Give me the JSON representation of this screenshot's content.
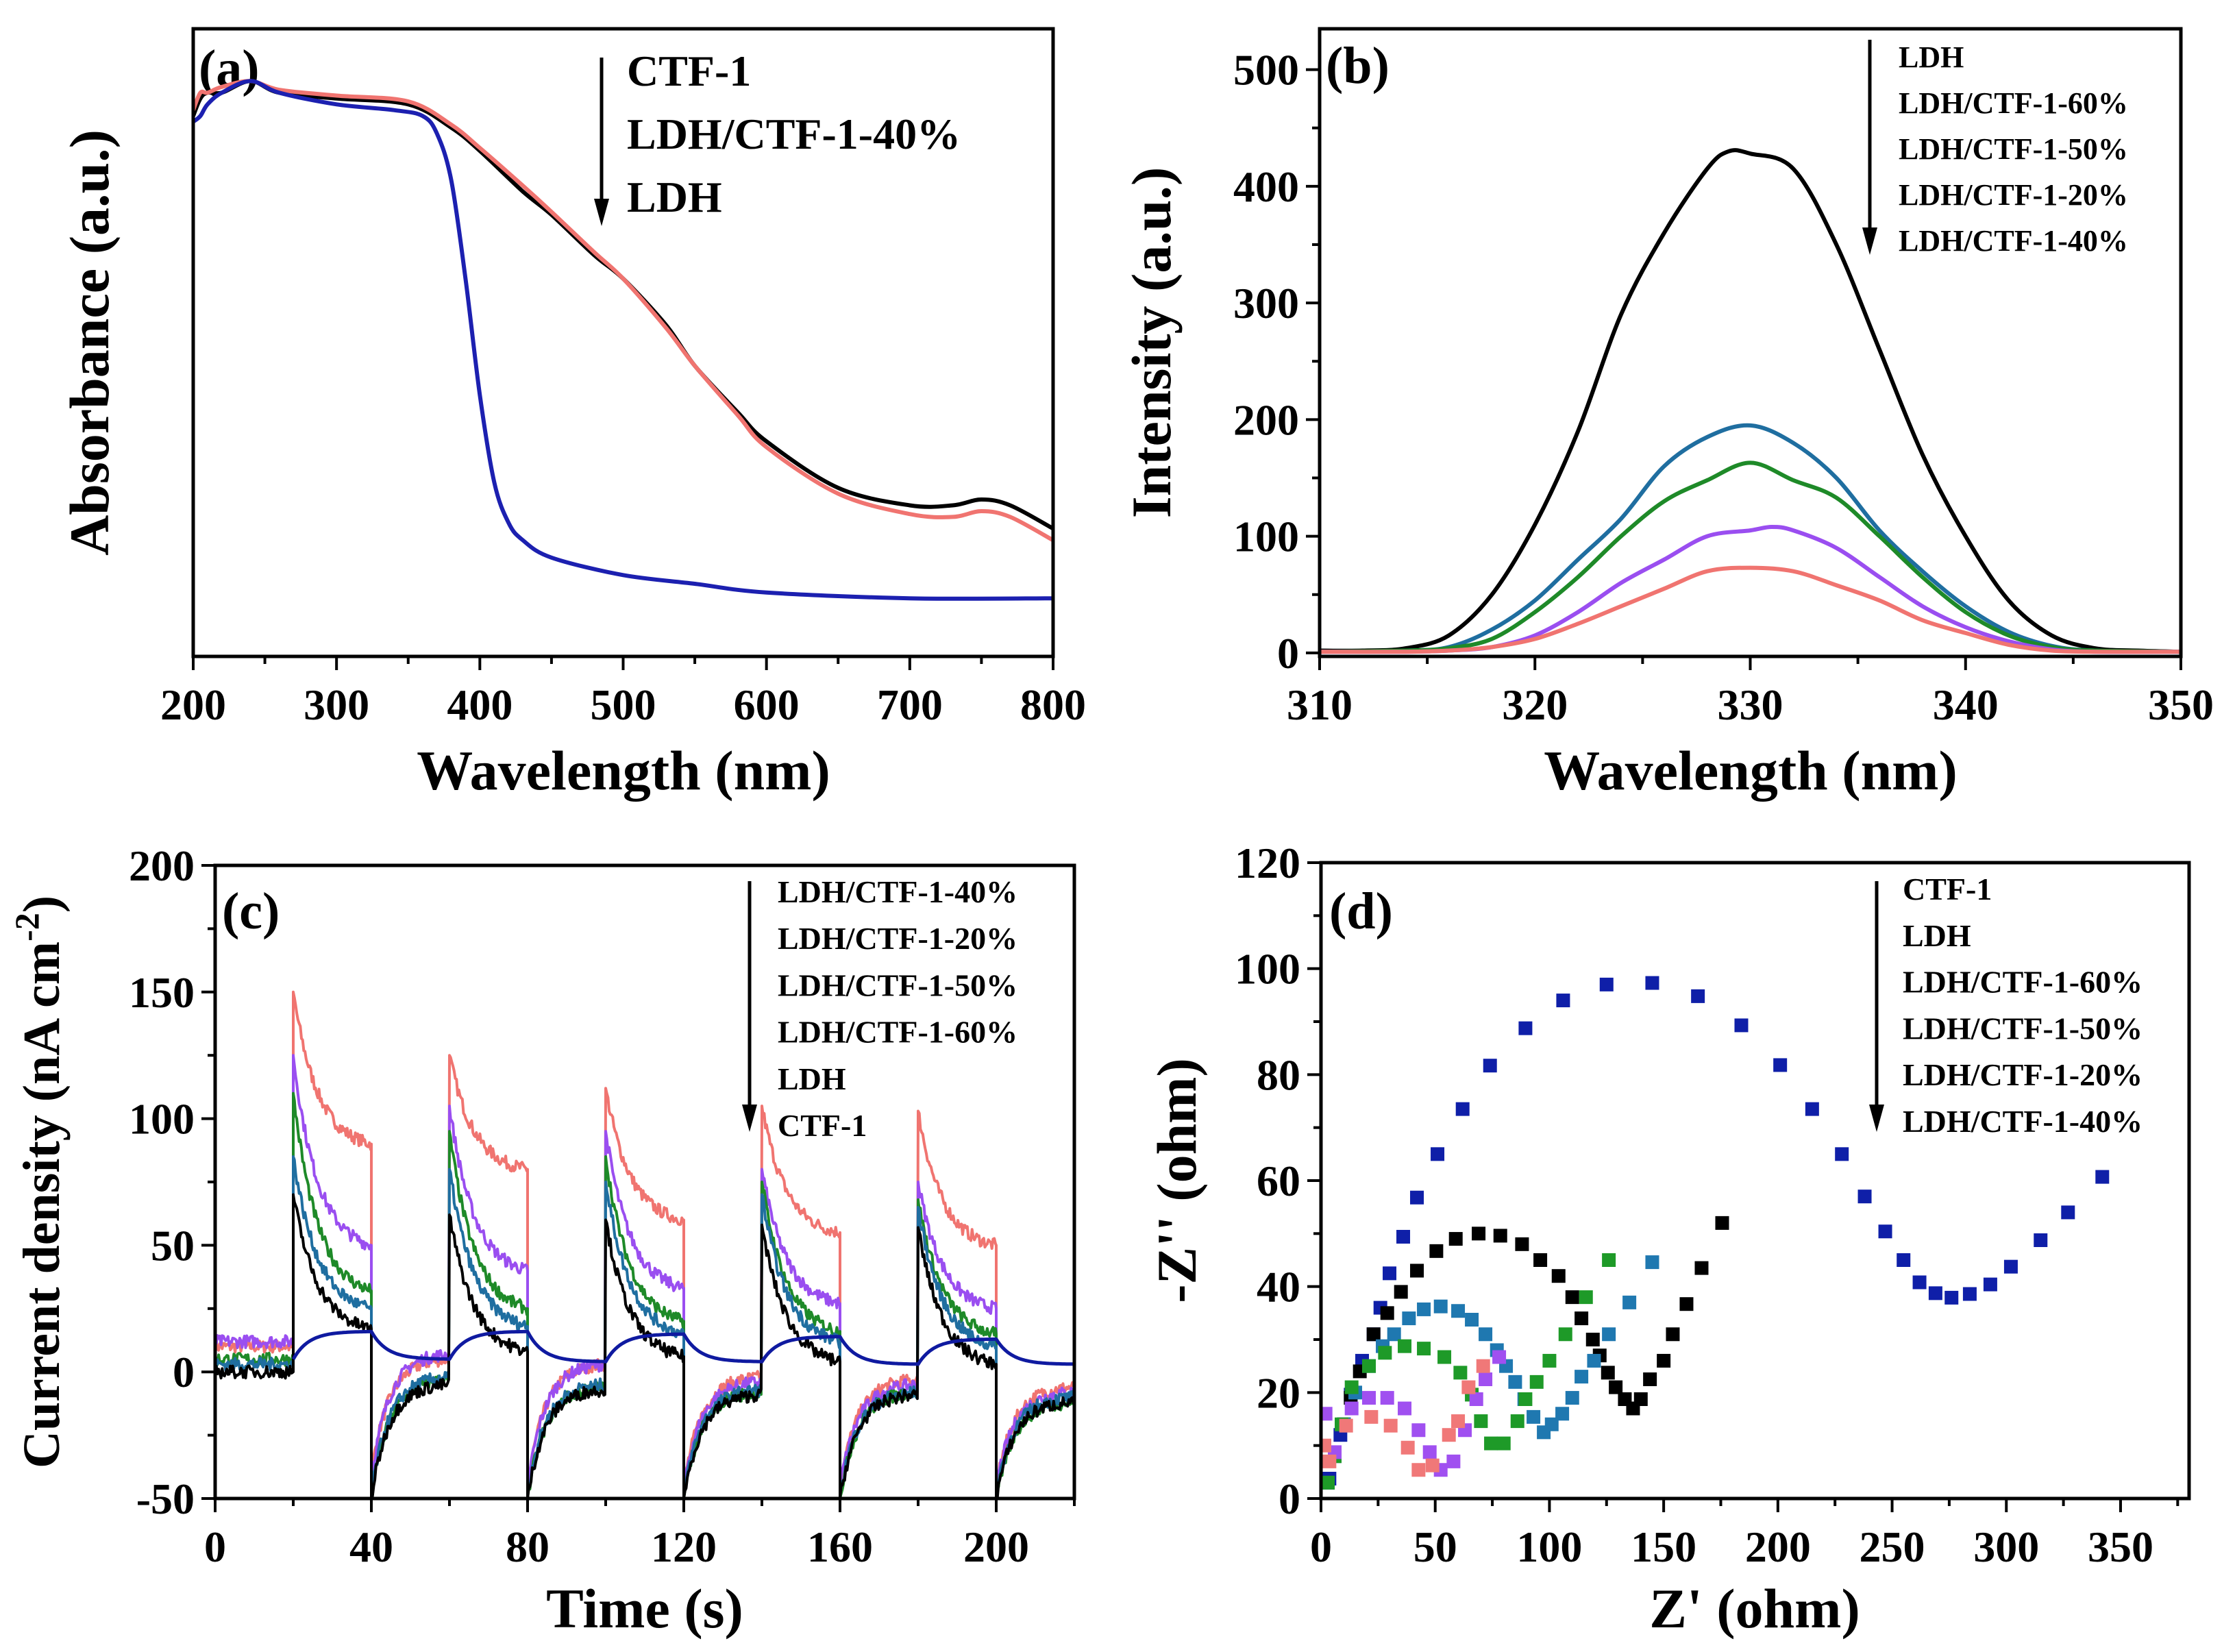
{
  "chart_data": [
    {
      "id": "a",
      "panel_label": "(a)",
      "type": "line",
      "xlabel": "Wavelength (nm)",
      "ylabel": "Absorbance (a.u.)",
      "xlim": [
        200,
        800
      ],
      "ylim": [
        0,
        1.08
      ],
      "xticks": [
        200,
        300,
        400,
        500,
        600,
        700,
        800
      ],
      "xminor": 50,
      "yticks": [],
      "yminor": null,
      "grid": false,
      "legend": {
        "placement": "top-center",
        "arrow": true,
        "items": [
          "CTF-1",
          "LDH/CTF-1-40%",
          "LDH"
        ]
      },
      "series": [
        {
          "name": "CTF-1",
          "color": "#000000",
          "x": [
            200,
            205,
            210,
            220,
            240,
            260,
            300,
            350,
            380,
            400,
            430,
            450,
            480,
            500,
            530,
            550,
            580,
            600,
            650,
            700,
            730,
            750,
            770,
            800
          ],
          "y": [
            0.93,
            0.96,
            0.97,
            0.97,
            0.99,
            0.97,
            0.96,
            0.95,
            0.91,
            0.87,
            0.8,
            0.76,
            0.69,
            0.65,
            0.57,
            0.5,
            0.42,
            0.37,
            0.29,
            0.26,
            0.26,
            0.27,
            0.26,
            0.22
          ]
        },
        {
          "name": "LDH/CTF-1-40%",
          "color": "#f07470",
          "x": [
            200,
            205,
            210,
            220,
            240,
            260,
            300,
            350,
            380,
            400,
            430,
            450,
            480,
            500,
            530,
            550,
            580,
            600,
            650,
            700,
            730,
            750,
            770,
            800
          ],
          "y": [
            0.94,
            0.97,
            0.97,
            0.98,
            0.99,
            0.975,
            0.965,
            0.955,
            0.915,
            0.875,
            0.81,
            0.765,
            0.695,
            0.65,
            0.565,
            0.5,
            0.415,
            0.36,
            0.28,
            0.245,
            0.24,
            0.25,
            0.24,
            0.2
          ]
        },
        {
          "name": "LDH",
          "color": "#1c20b0",
          "x": [
            200,
            205,
            210,
            220,
            240,
            260,
            300,
            340,
            360,
            370,
            380,
            390,
            400,
            410,
            420,
            430,
            450,
            500,
            550,
            600,
            700,
            800
          ],
          "y": [
            0.92,
            0.93,
            0.95,
            0.97,
            0.99,
            0.97,
            0.95,
            0.94,
            0.93,
            0.9,
            0.82,
            0.65,
            0.45,
            0.3,
            0.23,
            0.2,
            0.17,
            0.14,
            0.125,
            0.11,
            0.1,
            0.1
          ]
        }
      ]
    },
    {
      "id": "b",
      "panel_label": "(b)",
      "type": "line",
      "xlabel": "Wavelength (nm)",
      "ylabel": "Intensity (a.u.)",
      "xlim": [
        310,
        350
      ],
      "ylim": [
        -3,
        535
      ],
      "xticks": [
        310,
        320,
        330,
        340,
        350
      ],
      "xminor": 5,
      "yticks": [
        0,
        100,
        200,
        300,
        400,
        500
      ],
      "yminor": 50,
      "grid": false,
      "legend": {
        "placement": "top-right",
        "arrow": true,
        "items": [
          "LDH",
          "LDH/CTF-1-60%",
          "LDH/CTF-1-50%",
          "LDH/CTF-1-20%",
          "LDH/CTF-1-40%"
        ]
      },
      "series": [
        {
          "name": "LDH",
          "color": "#000000",
          "x": [
            310,
            312,
            314,
            316,
            318,
            320,
            322,
            324,
            326,
            328,
            329,
            330,
            332,
            334,
            336,
            338,
            340,
            342,
            344,
            346,
            348,
            350
          ],
          "y": [
            2,
            2,
            4,
            15,
            50,
            110,
            190,
            290,
            360,
            415,
            430,
            428,
            415,
            350,
            260,
            170,
            100,
            45,
            15,
            4,
            2,
            1
          ]
        },
        {
          "name": "LDH/CTF-1-60%",
          "color": "#1f6ea0",
          "x": [
            310,
            314,
            316,
            318,
            320,
            322,
            324,
            326,
            328,
            330,
            332,
            334,
            336,
            338,
            340,
            342,
            344,
            346,
            350
          ],
          "y": [
            1,
            2,
            5,
            20,
            45,
            80,
            115,
            160,
            185,
            195,
            180,
            150,
            105,
            70,
            40,
            18,
            6,
            2,
            1
          ]
        },
        {
          "name": "LDH/CTF-1-50%",
          "color": "#1e8a28",
          "x": [
            310,
            314,
            316,
            318,
            320,
            322,
            324,
            326,
            328,
            330,
            332,
            334,
            336,
            338,
            340,
            342,
            344,
            346,
            350
          ],
          "y": [
            1,
            2,
            4,
            12,
            35,
            65,
            100,
            130,
            148,
            163,
            148,
            133,
            100,
            65,
            35,
            15,
            5,
            2,
            1
          ]
        },
        {
          "name": "LDH/CTF-1-20%",
          "color": "#9a4ef0",
          "x": [
            310,
            314,
            316,
            318,
            320,
            322,
            324,
            326,
            328,
            330,
            331,
            332,
            334,
            336,
            338,
            340,
            342,
            344,
            346,
            350
          ],
          "y": [
            1,
            1,
            2,
            5,
            15,
            35,
            60,
            80,
            100,
            105,
            108,
            105,
            90,
            65,
            40,
            22,
            10,
            3,
            1,
            1
          ]
        },
        {
          "name": "LDH/CTF-1-40%",
          "color": "#f07470",
          "x": [
            310,
            314,
            316,
            318,
            320,
            322,
            324,
            326,
            328,
            330,
            332,
            334,
            336,
            338,
            340,
            342,
            344,
            346,
            350
          ],
          "y": [
            1,
            1,
            2,
            5,
            12,
            25,
            40,
            55,
            70,
            73,
            70,
            58,
            45,
            28,
            17,
            7,
            2,
            1,
            1
          ]
        }
      ]
    },
    {
      "id": "c",
      "panel_label": "(c)",
      "type": "line",
      "xlabel": "Time (s)",
      "ylabel": "Current density (nA cm",
      "ylabel_sup": "-2",
      "ylabel_end": ")",
      "xlim": [
        0,
        220
      ],
      "ylim": [
        -50,
        200
      ],
      "xticks": [
        0,
        40,
        80,
        120,
        160,
        200
      ],
      "xminor": 20,
      "yticks": [
        -50,
        0,
        50,
        100,
        150,
        200
      ],
      "yminor": 25,
      "grid": false,
      "light_on_s": [
        20,
        60,
        100,
        140,
        180
      ],
      "light_off_s": [
        40,
        80,
        120,
        160,
        200
      ],
      "legend": {
        "placement": "top-right",
        "arrow": true,
        "items": [
          "LDH/CTF-1-40%",
          "LDH/CTF-1-20%",
          "LDH/CTF-1-50%",
          "LDH/CTF-1-60%",
          "LDH",
          "CTF-1"
        ]
      },
      "series": [
        {
          "name": "LDH/CTF-1-40%",
          "color": "#f07470",
          "initial": 10,
          "peaks": [
            150,
            125,
            112,
            105,
            103
          ],
          "on_end": [
            90,
            80,
            60,
            55,
            50
          ],
          "off_min": [
            -40,
            -45,
            -45,
            -45,
            -45
          ],
          "off_end": [
            5,
            3,
            -2,
            -3,
            -6
          ]
        },
        {
          "name": "LDH/CTF-1-20%",
          "color": "#9a4ef0",
          "initial": 12,
          "peaks": [
            125,
            105,
            95,
            80,
            75
          ],
          "on_end": [
            50,
            40,
            33,
            27,
            25
          ],
          "off_min": [
            -42,
            -45,
            -45,
            -45,
            -45
          ],
          "off_end": [
            7,
            3,
            -4,
            -5,
            -8
          ]
        },
        {
          "name": "LDH/CTF-1-50%",
          "color": "#1e8a28",
          "initial": 5,
          "peaks": [
            110,
            95,
            85,
            75,
            68
          ],
          "on_end": [
            32,
            25,
            20,
            16,
            15
          ],
          "off_min": [
            -50,
            -50,
            -50,
            -50,
            -50
          ],
          "off_end": [
            -3,
            -6,
            -8,
            -8,
            -12
          ]
        },
        {
          "name": "LDH/CTF-1-60%",
          "color": "#1f6ea0",
          "initial": 3,
          "peaks": [
            85,
            80,
            75,
            70,
            65
          ],
          "on_end": [
            25,
            18,
            15,
            12,
            10
          ],
          "off_min": [
            -48,
            -48,
            -48,
            -48,
            -48
          ],
          "off_end": [
            -2,
            -5,
            -7,
            -8,
            -10
          ]
        },
        {
          "name": "LDH",
          "color": "#000000",
          "initial": 0,
          "peaks": [
            70,
            62,
            60,
            58,
            57
          ],
          "on_end": [
            17,
            8,
            6,
            4,
            3
          ],
          "off_min": [
            -50,
            -50,
            -50,
            -50,
            -50
          ],
          "off_end": [
            -5,
            -7,
            -9,
            -9,
            -12
          ]
        },
        {
          "name": "CTF-1",
          "color": "#0f1aa0",
          "smooth": true,
          "initial": null,
          "on_top": [
            16,
            16,
            15,
            14,
            13
          ],
          "off_base": [
            5,
            5,
            4,
            4,
            3
          ]
        }
      ]
    },
    {
      "id": "d",
      "panel_label": "(d)",
      "type": "scatter",
      "xlabel": "Z' (ohm)",
      "ylabel": "-Z'' (ohm)",
      "xlim": [
        0,
        380
      ],
      "ylim": [
        0,
        120
      ],
      "xticks": [
        0,
        50,
        100,
        150,
        200,
        250,
        300,
        350
      ],
      "xminor": 25,
      "yticks": [
        0,
        20,
        40,
        60,
        80,
        100,
        120
      ],
      "yminor": 10,
      "grid": false,
      "legend": {
        "placement": "top-right",
        "arrow": true,
        "items": [
          "CTF-1",
          "LDH",
          "LDH/CTF-1-60%",
          "LDH/CTF-1-50%",
          "LDH/CTF-1-20%",
          "LDH/CTF-1-40%"
        ]
      },
      "series": [
        {
          "name": "CTF-1",
          "color": "#0f1fa8",
          "x": [
            3.7,
            8.5,
            13,
            18,
            23,
            26,
            30,
            36,
            42,
            51,
            62,
            74,
            89.5,
            106,
            125,
            145,
            165,
            184,
            201,
            215,
            228,
            238,
            247,
            255,
            262,
            269,
            276,
            284,
            293,
            302,
            315,
            327,
            342
          ],
          "y": [
            3.75,
            12,
            19.6,
            26,
            31,
            36,
            42.5,
            49.4,
            56.8,
            65,
            73.5,
            81.7,
            88.75,
            94,
            97,
            97.3,
            94.8,
            89.3,
            81.8,
            73.5,
            65,
            57,
            50.4,
            45,
            40.8,
            38.75,
            37.9,
            38.6,
            40.4,
            43.75,
            48.75,
            54,
            60.7
          ]
        },
        {
          "name": "LDH",
          "color": "#000000",
          "x": [
            3,
            6,
            10,
            13,
            17,
            23,
            29,
            35,
            42,
            50.5,
            59,
            69,
            78.5,
            88,
            96,
            104,
            110,
            114,
            119,
            122,
            125.6,
            129,
            133,
            136.6,
            140,
            144,
            150,
            154,
            160,
            166.6,
            175.6
          ],
          "y": [
            3,
            8,
            14,
            19,
            24,
            31,
            35,
            39,
            43,
            46.7,
            49,
            50,
            49.6,
            48,
            45,
            42,
            38,
            34,
            30,
            27,
            23.75,
            21,
            18.75,
            17,
            18.75,
            22.5,
            26,
            31,
            36.7,
            43.5,
            52
          ]
        },
        {
          "name": "LDH/CTF-1-60%",
          "color": "#1f78b0",
          "x": [
            3,
            6,
            10,
            15,
            21,
            27,
            32,
            38.5,
            45,
            52.4,
            60,
            66,
            72,
            77,
            81,
            85,
            89,
            93,
            97.5,
            101,
            105.6,
            110,
            114,
            119.5,
            126,
            135,
            145
          ],
          "y": [
            3,
            8,
            14,
            20,
            25,
            28.75,
            31,
            34,
            35.7,
            36.25,
            35.4,
            33.75,
            31,
            28,
            25,
            22,
            18.75,
            15.4,
            12.5,
            14,
            16,
            19,
            23,
            26,
            31,
            37,
            44.6
          ]
        },
        {
          "name": "LDH/CTF-1-50%",
          "color": "#1e9a28",
          "x": [
            3,
            6,
            9,
            13.4,
            21,
            28,
            36.6,
            45,
            54,
            61,
            66,
            70,
            74.4,
            80,
            86,
            89.5,
            94.4,
            100,
            107,
            116,
            126
          ],
          "y": [
            3,
            8,
            14,
            21,
            25,
            27.5,
            28.75,
            28.3,
            26.7,
            23.75,
            19.6,
            14.6,
            10.4,
            10.4,
            14.6,
            18.75,
            22,
            26,
            31,
            38,
            45
          ]
        },
        {
          "name": "LDH/CTF-1-20%",
          "color": "#a050f0",
          "x": [
            2,
            6,
            13.4,
            21,
            29,
            36.6,
            42.7,
            47.6,
            52.4,
            58,
            63,
            68,
            72,
            78
          ],
          "y": [
            16,
            8.75,
            17,
            19,
            19,
            17,
            12.9,
            8.75,
            5.4,
            7,
            12.9,
            18.75,
            22.5,
            26.7
          ]
        },
        {
          "name": "LDH/CTF-1-40%",
          "color": "#f07878",
          "x": [
            1.5,
            3.7,
            11,
            22,
            30.5,
            38,
            42.7,
            48.8,
            56,
            60,
            64.6,
            71
          ],
          "y": [
            10,
            7,
            13.75,
            15.4,
            13.75,
            9.6,
            5.4,
            6.25,
            12,
            14.6,
            21,
            25
          ]
        }
      ]
    }
  ]
}
